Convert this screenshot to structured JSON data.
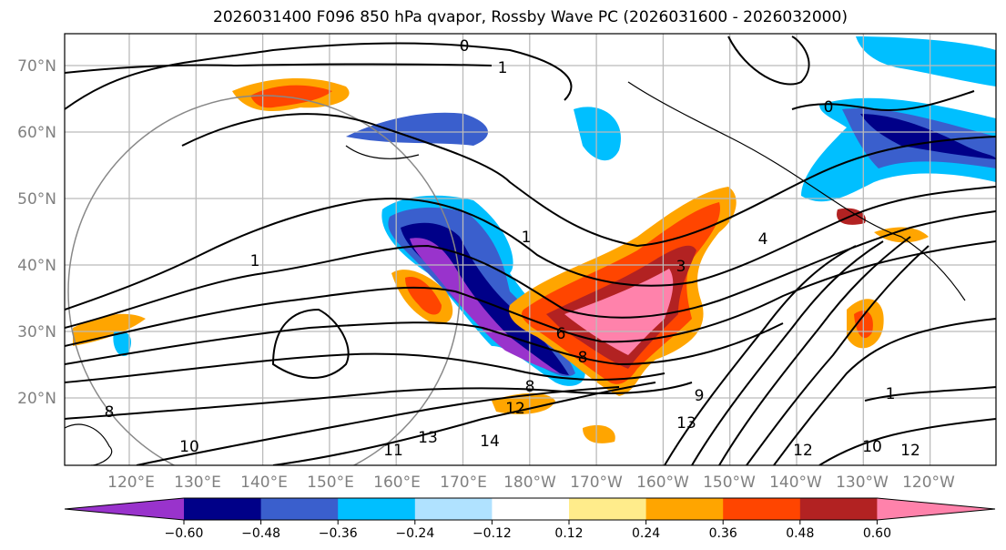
{
  "title": "2026031400 F096 850 hPa qvapor, Rossby Wave PC (2026031600 - 2026032000)",
  "map": {
    "lat_labels": [
      "70°N",
      "60°N",
      "50°N",
      "40°N",
      "30°N",
      "20°N"
    ],
    "lon_labels": [
      "120°E",
      "130°E",
      "140°E",
      "150°E",
      "160°E",
      "170°E",
      "180°W",
      "170°W",
      "160°W",
      "150°W",
      "140°W",
      "130°W",
      "120°W"
    ],
    "contour_labels": [
      "0",
      "1",
      "0",
      "1",
      "1",
      "3",
      "4",
      "6",
      "8",
      "8",
      "12",
      "14",
      "13",
      "13",
      "9",
      "11",
      "12",
      "10",
      "12",
      "1",
      "10",
      "8"
    ]
  },
  "colorbar": {
    "ticks": [
      "−0.60",
      "−0.48",
      "−0.36",
      "−0.24",
      "−0.12",
      "0.12",
      "0.24",
      "0.36",
      "0.48",
      "0.60"
    ],
    "colors": [
      "#9933cc",
      "#000088",
      "#3a5fcd",
      "#00bfff",
      "#b0e2ff",
      "#ffffff",
      "#ffec8b",
      "#ffa500",
      "#ff4500",
      "#b22222",
      "#ff82ab"
    ]
  }
}
